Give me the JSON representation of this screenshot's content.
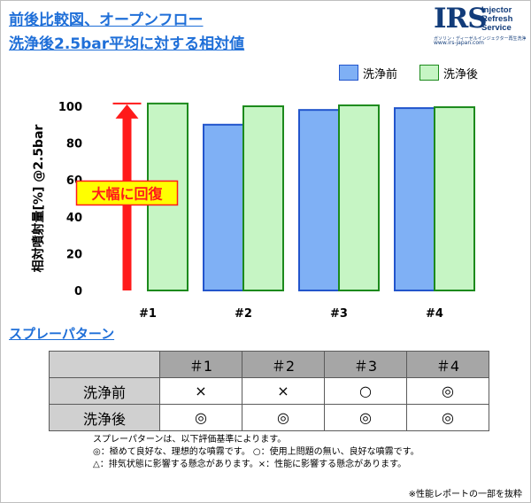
{
  "header": {
    "title_line1": "前後比較図、オープンフロー",
    "title_line2": "洗浄後2.5bar平均に対する相対値"
  },
  "logo": {
    "mark": "IRS",
    "line1": "Injector",
    "line2": "Refresh",
    "line3": "Service",
    "subtitle": "ガソリン・ディーゼルインジェクター再生洗浄サービス",
    "url": "www.irs-japan.com"
  },
  "colors": {
    "before_fill": "#7fb0f5",
    "before_stroke": "#2255cc",
    "after_fill": "#c6f5c4",
    "after_stroke": "#1c8a1c",
    "arrow": "#ff1a1a",
    "title": "#1f6fd8"
  },
  "chart_data": {
    "type": "bar",
    "title": "",
    "xlabel": "",
    "ylabel": "相対噴射量[%] @2.5bar",
    "categories": [
      "#1",
      "#2",
      "#3",
      "#4"
    ],
    "series": [
      {
        "name": "洗浄前",
        "values": [
          null,
          90,
          98,
          99
        ]
      },
      {
        "name": "洗浄後",
        "values": [
          101.5,
          100,
          100.5,
          99.5
        ]
      }
    ],
    "ylim": [
      0,
      100
    ],
    "yticks": [
      "0",
      "20",
      "40",
      "60",
      "80",
      "100"
    ],
    "legend_position": "top-right",
    "grid": false,
    "annotation": {
      "text": "大幅に回復",
      "category": "#1",
      "from": 0,
      "to": 101.5
    }
  },
  "spray": {
    "section_title": "スプレーパターン",
    "columns": [
      "＃1",
      "＃2",
      "＃3",
      "＃4"
    ],
    "rows": [
      {
        "label": "洗浄前",
        "cells": [
          "×",
          "×",
          "○",
          "◎"
        ]
      },
      {
        "label": "洗浄後",
        "cells": [
          "◎",
          "◎",
          "◎",
          "◎"
        ]
      }
    ],
    "notes": [
      "スプレーパターンは、以下評価基準によります。",
      "◎：極めて良好な、理想的な噴霧です。 ○：使用上問題の無い、良好な噴霧です。",
      "△：排気状態に影響する懸念があります。×：性能に影響する懸念があります。"
    ],
    "footnote": "※性能レポートの一部を抜粋"
  }
}
